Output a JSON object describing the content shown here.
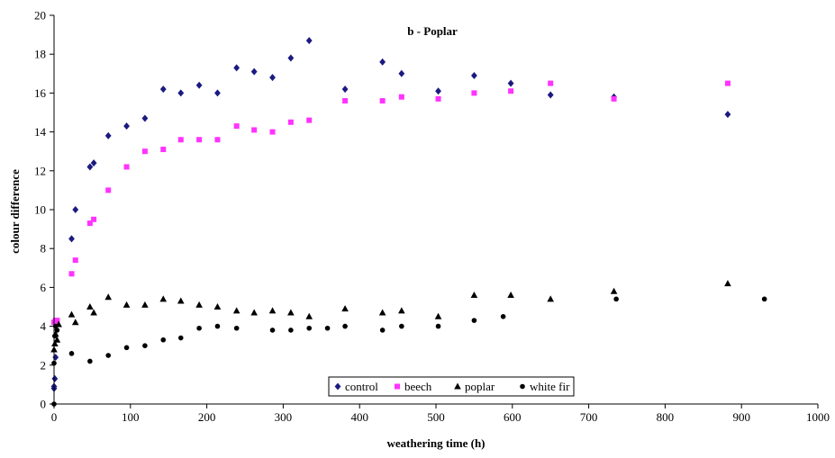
{
  "chart_data": {
    "type": "scatter",
    "title": "b - Poplar",
    "xlabel": "weathering time (h)",
    "ylabel": "colour difference",
    "xlim": [
      0,
      1000
    ],
    "ylim": [
      0,
      20
    ],
    "xticks": [
      "0",
      "100",
      "200",
      "300",
      "400",
      "500",
      "600",
      "700",
      "800",
      "900",
      "1000"
    ],
    "yticks": [
      "0",
      "2",
      "4",
      "6",
      "8",
      "10",
      "12",
      "14",
      "16",
      "18",
      "20"
    ],
    "grid": false,
    "legend_position": "bottom-center",
    "series": [
      {
        "name": "control",
        "marker": "diamond",
        "color": "#1a1a80",
        "points": [
          [
            0,
            0.8
          ],
          [
            0,
            0.9
          ],
          [
            1,
            1.3
          ],
          [
            2,
            2.4
          ],
          [
            23,
            8.5
          ],
          [
            28,
            10
          ],
          [
            47,
            12.2
          ],
          [
            52,
            12.4
          ],
          [
            71,
            13.8
          ],
          [
            95,
            14.3
          ],
          [
            119,
            14.7
          ],
          [
            143,
            16.2
          ],
          [
            166,
            16
          ],
          [
            190,
            16.4
          ],
          [
            214,
            16
          ],
          [
            239,
            17.3
          ],
          [
            262,
            17.1
          ],
          [
            286,
            16.8
          ],
          [
            310,
            17.8
          ],
          [
            334,
            18.7
          ],
          [
            381,
            16.2
          ],
          [
            430,
            17.6
          ],
          [
            455,
            17
          ],
          [
            503,
            16.1
          ],
          [
            550,
            16.9
          ],
          [
            598,
            16.5
          ],
          [
            650,
            15.9
          ],
          [
            733,
            15.8
          ],
          [
            882,
            14.9
          ]
        ]
      },
      {
        "name": "beech",
        "marker": "square",
        "color": "#ff33ff",
        "points": [
          [
            0,
            4.2
          ],
          [
            2,
            4.3
          ],
          [
            4,
            4.3
          ],
          [
            23,
            6.7
          ],
          [
            28,
            7.4
          ],
          [
            47,
            9.3
          ],
          [
            52,
            9.5
          ],
          [
            71,
            11
          ],
          [
            95,
            12.2
          ],
          [
            119,
            13
          ],
          [
            143,
            13.1
          ],
          [
            166,
            13.6
          ],
          [
            190,
            13.6
          ],
          [
            214,
            13.6
          ],
          [
            239,
            14.3
          ],
          [
            262,
            14.1
          ],
          [
            286,
            14
          ],
          [
            310,
            14.5
          ],
          [
            334,
            14.6
          ],
          [
            381,
            15.6
          ],
          [
            430,
            15.6
          ],
          [
            455,
            15.8
          ],
          [
            503,
            15.7
          ],
          [
            550,
            16
          ],
          [
            598,
            16.1
          ],
          [
            650,
            16.5
          ],
          [
            733,
            15.7
          ],
          [
            882,
            16.5
          ]
        ]
      },
      {
        "name": "poplar",
        "marker": "triangle",
        "color": "#000000",
        "points": [
          [
            0,
            2.8
          ],
          [
            1,
            3.1
          ],
          [
            2,
            3.6
          ],
          [
            4,
            3.3
          ],
          [
            6,
            4.1
          ],
          [
            23,
            4.6
          ],
          [
            28,
            4.2
          ],
          [
            47,
            5
          ],
          [
            52,
            4.7
          ],
          [
            71,
            5.5
          ],
          [
            95,
            5.1
          ],
          [
            119,
            5.1
          ],
          [
            143,
            5.4
          ],
          [
            166,
            5.3
          ],
          [
            190,
            5.1
          ],
          [
            214,
            5
          ],
          [
            239,
            4.8
          ],
          [
            262,
            4.7
          ],
          [
            286,
            4.8
          ],
          [
            310,
            4.7
          ],
          [
            334,
            4.5
          ],
          [
            381,
            4.9
          ],
          [
            430,
            4.7
          ],
          [
            455,
            4.8
          ],
          [
            503,
            4.5
          ],
          [
            550,
            5.6
          ],
          [
            598,
            5.6
          ],
          [
            650,
            5.4
          ],
          [
            733,
            5.8
          ],
          [
            882,
            6.2
          ]
        ]
      },
      {
        "name": "white fir",
        "marker": "circle",
        "color": "#000000",
        "points": [
          [
            0,
            0
          ],
          [
            0,
            2.1
          ],
          [
            1,
            3.5
          ],
          [
            2,
            4
          ],
          [
            4,
            3.8
          ],
          [
            23,
            2.6
          ],
          [
            47,
            2.2
          ],
          [
            71,
            2.5
          ],
          [
            95,
            2.9
          ],
          [
            119,
            3
          ],
          [
            143,
            3.3
          ],
          [
            166,
            3.4
          ],
          [
            190,
            3.9
          ],
          [
            214,
            4
          ],
          [
            239,
            3.9
          ],
          [
            286,
            3.8
          ],
          [
            310,
            3.8
          ],
          [
            334,
            3.9
          ],
          [
            358,
            3.9
          ],
          [
            381,
            4
          ],
          [
            430,
            3.8
          ],
          [
            455,
            4
          ],
          [
            503,
            4
          ],
          [
            550,
            4.3
          ],
          [
            588,
            4.5
          ],
          [
            736,
            5.4
          ],
          [
            930,
            5.4
          ]
        ]
      }
    ]
  }
}
